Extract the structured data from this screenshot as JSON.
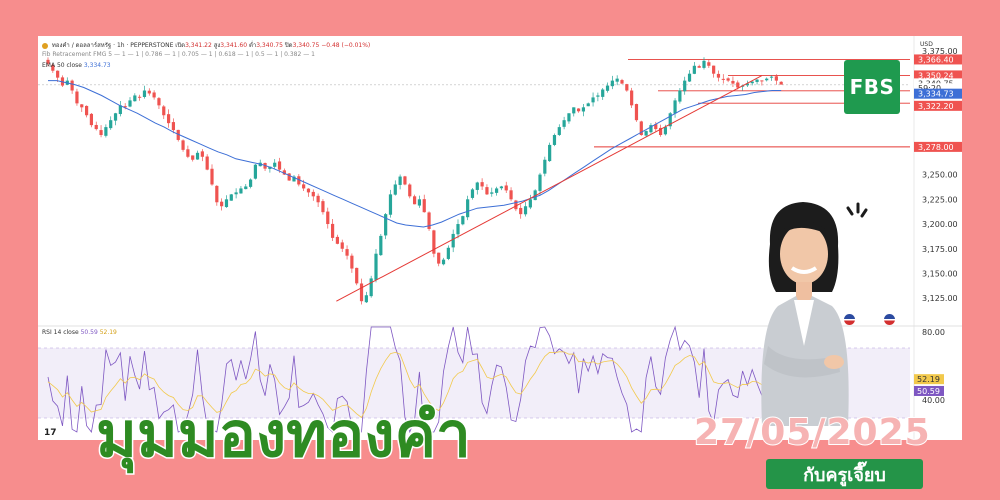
{
  "header": {
    "symbol": "ทองคำ / ดอลลาร์สหรัฐ · 1h · PEPPERSTONE",
    "open_label": "เปิด",
    "open": "3,341.22",
    "high_label": "สูง",
    "high": "3,341.60",
    "low_label": "ต่ำ",
    "low": "3,340.75",
    "close_label": "ปิด",
    "close": "3,340.75",
    "change": "−0.48 (−0.01%)",
    "fib_line": "Fib Retracement FMG 5 — 1 — 1 | 0.786 — 1 | 0.705 — 1 | 0.618 — 1 | 0.5 — 1 | 0.382 — 1",
    "ema_label": "EMA 50 close",
    "ema_value": "3,334.73",
    "currency": "USD",
    "rsi_label": "RSI 14 close",
    "rsi_value1": "50.59",
    "rsi_value2": "52.19",
    "tv_logo": "17"
  },
  "price_tags": {
    "p1": "3,366.40",
    "p2": "3,350.24",
    "p3": "3,340.75",
    "countdown": "59:20",
    "p4": "3,334.73",
    "p5": "3,322.20",
    "p6": "3,278.00",
    "rsi_a": "52.19",
    "rsi_b": "50.59"
  },
  "colors": {
    "up": "#26a69a",
    "down": "#ef5350",
    "ema": "#3d6fd6",
    "trend": "#e53935",
    "rsi": "#7e57c2",
    "rsi_ma": "#f2c94c",
    "brand_green": "#1f9a4f",
    "background": "#f78d8d"
  },
  "chart_data": {
    "type": "candlestick",
    "y_ticks": [
      "3,375.00",
      "3,250.00",
      "3,225.00",
      "3,200.00",
      "3,175.00",
      "3,150.00",
      "3,125.00"
    ],
    "ylim": [
      3105,
      3380
    ],
    "closes": [
      3362,
      3355,
      3348,
      3340,
      3345,
      3335,
      3322,
      3318,
      3310,
      3300,
      3296,
      3290,
      3298,
      3305,
      3312,
      3320,
      3318,
      3325,
      3330,
      3328,
      3335,
      3332,
      3328,
      3320,
      3310,
      3302,
      3295,
      3285,
      3275,
      3268,
      3265,
      3272,
      3268,
      3255,
      3240,
      3222,
      3218,
      3225,
      3230,
      3232,
      3236,
      3238,
      3245,
      3260,
      3262,
      3256,
      3258,
      3262,
      3255,
      3250,
      3244,
      3248,
      3240,
      3236,
      3232,
      3228,
      3222,
      3212,
      3200,
      3186,
      3180,
      3175,
      3168,
      3155,
      3140,
      3122,
      3128,
      3145,
      3170,
      3188,
      3210,
      3230,
      3240,
      3248,
      3240,
      3228,
      3220,
      3225,
      3212,
      3195,
      3170,
      3160,
      3164,
      3176,
      3190,
      3200,
      3208,
      3225,
      3235,
      3242,
      3238,
      3230,
      3232,
      3236,
      3238,
      3234,
      3225,
      3215,
      3210,
      3218,
      3225,
      3234,
      3250,
      3265,
      3280,
      3290,
      3298,
      3305,
      3312,
      3318,
      3314,
      3318,
      3322,
      3328,
      3330,
      3336,
      3340,
      3345,
      3347,
      3342,
      3335,
      3320,
      3305,
      3290,
      3294,
      3300,
      3296,
      3290,
      3298,
      3312,
      3325,
      3335,
      3345,
      3352,
      3360,
      3358,
      3365,
      3360,
      3352,
      3348,
      3346,
      3345,
      3342,
      3338,
      3340,
      3342,
      3344,
      3346,
      3345,
      3347,
      3349,
      3345,
      3341
    ],
    "ema": [
      3345,
      3345,
      3343,
      3341,
      3338,
      3334,
      3330,
      3325,
      3320,
      3316,
      3312,
      3307,
      3302,
      3298,
      3293,
      3289,
      3285,
      3281,
      3277,
      3273,
      3270,
      3266,
      3264,
      3262,
      3260,
      3257,
      3253,
      3249,
      3245,
      3241,
      3237,
      3233,
      3229,
      3225,
      3221,
      3217,
      3213,
      3209,
      3205,
      3201,
      3199,
      3198,
      3197,
      3199,
      3202,
      3206,
      3210,
      3213,
      3216,
      3217,
      3218,
      3219,
      3221,
      3223,
      3226,
      3229,
      3234,
      3240,
      3246,
      3252,
      3258,
      3264,
      3270,
      3276,
      3281,
      3286,
      3291,
      3296,
      3301,
      3306,
      3311,
      3316,
      3319,
      3322,
      3325,
      3327,
      3329,
      3330,
      3331,
      3333,
      3334,
      3335,
      3335
    ],
    "trendline": [
      [
        0.27,
        3122
      ],
      [
        0.76,
        3350
      ]
    ],
    "h_levels": [
      3366.4,
      3350.24,
      3334.73,
      3322.2,
      3278.0,
      3340.75
    ]
  }
}
